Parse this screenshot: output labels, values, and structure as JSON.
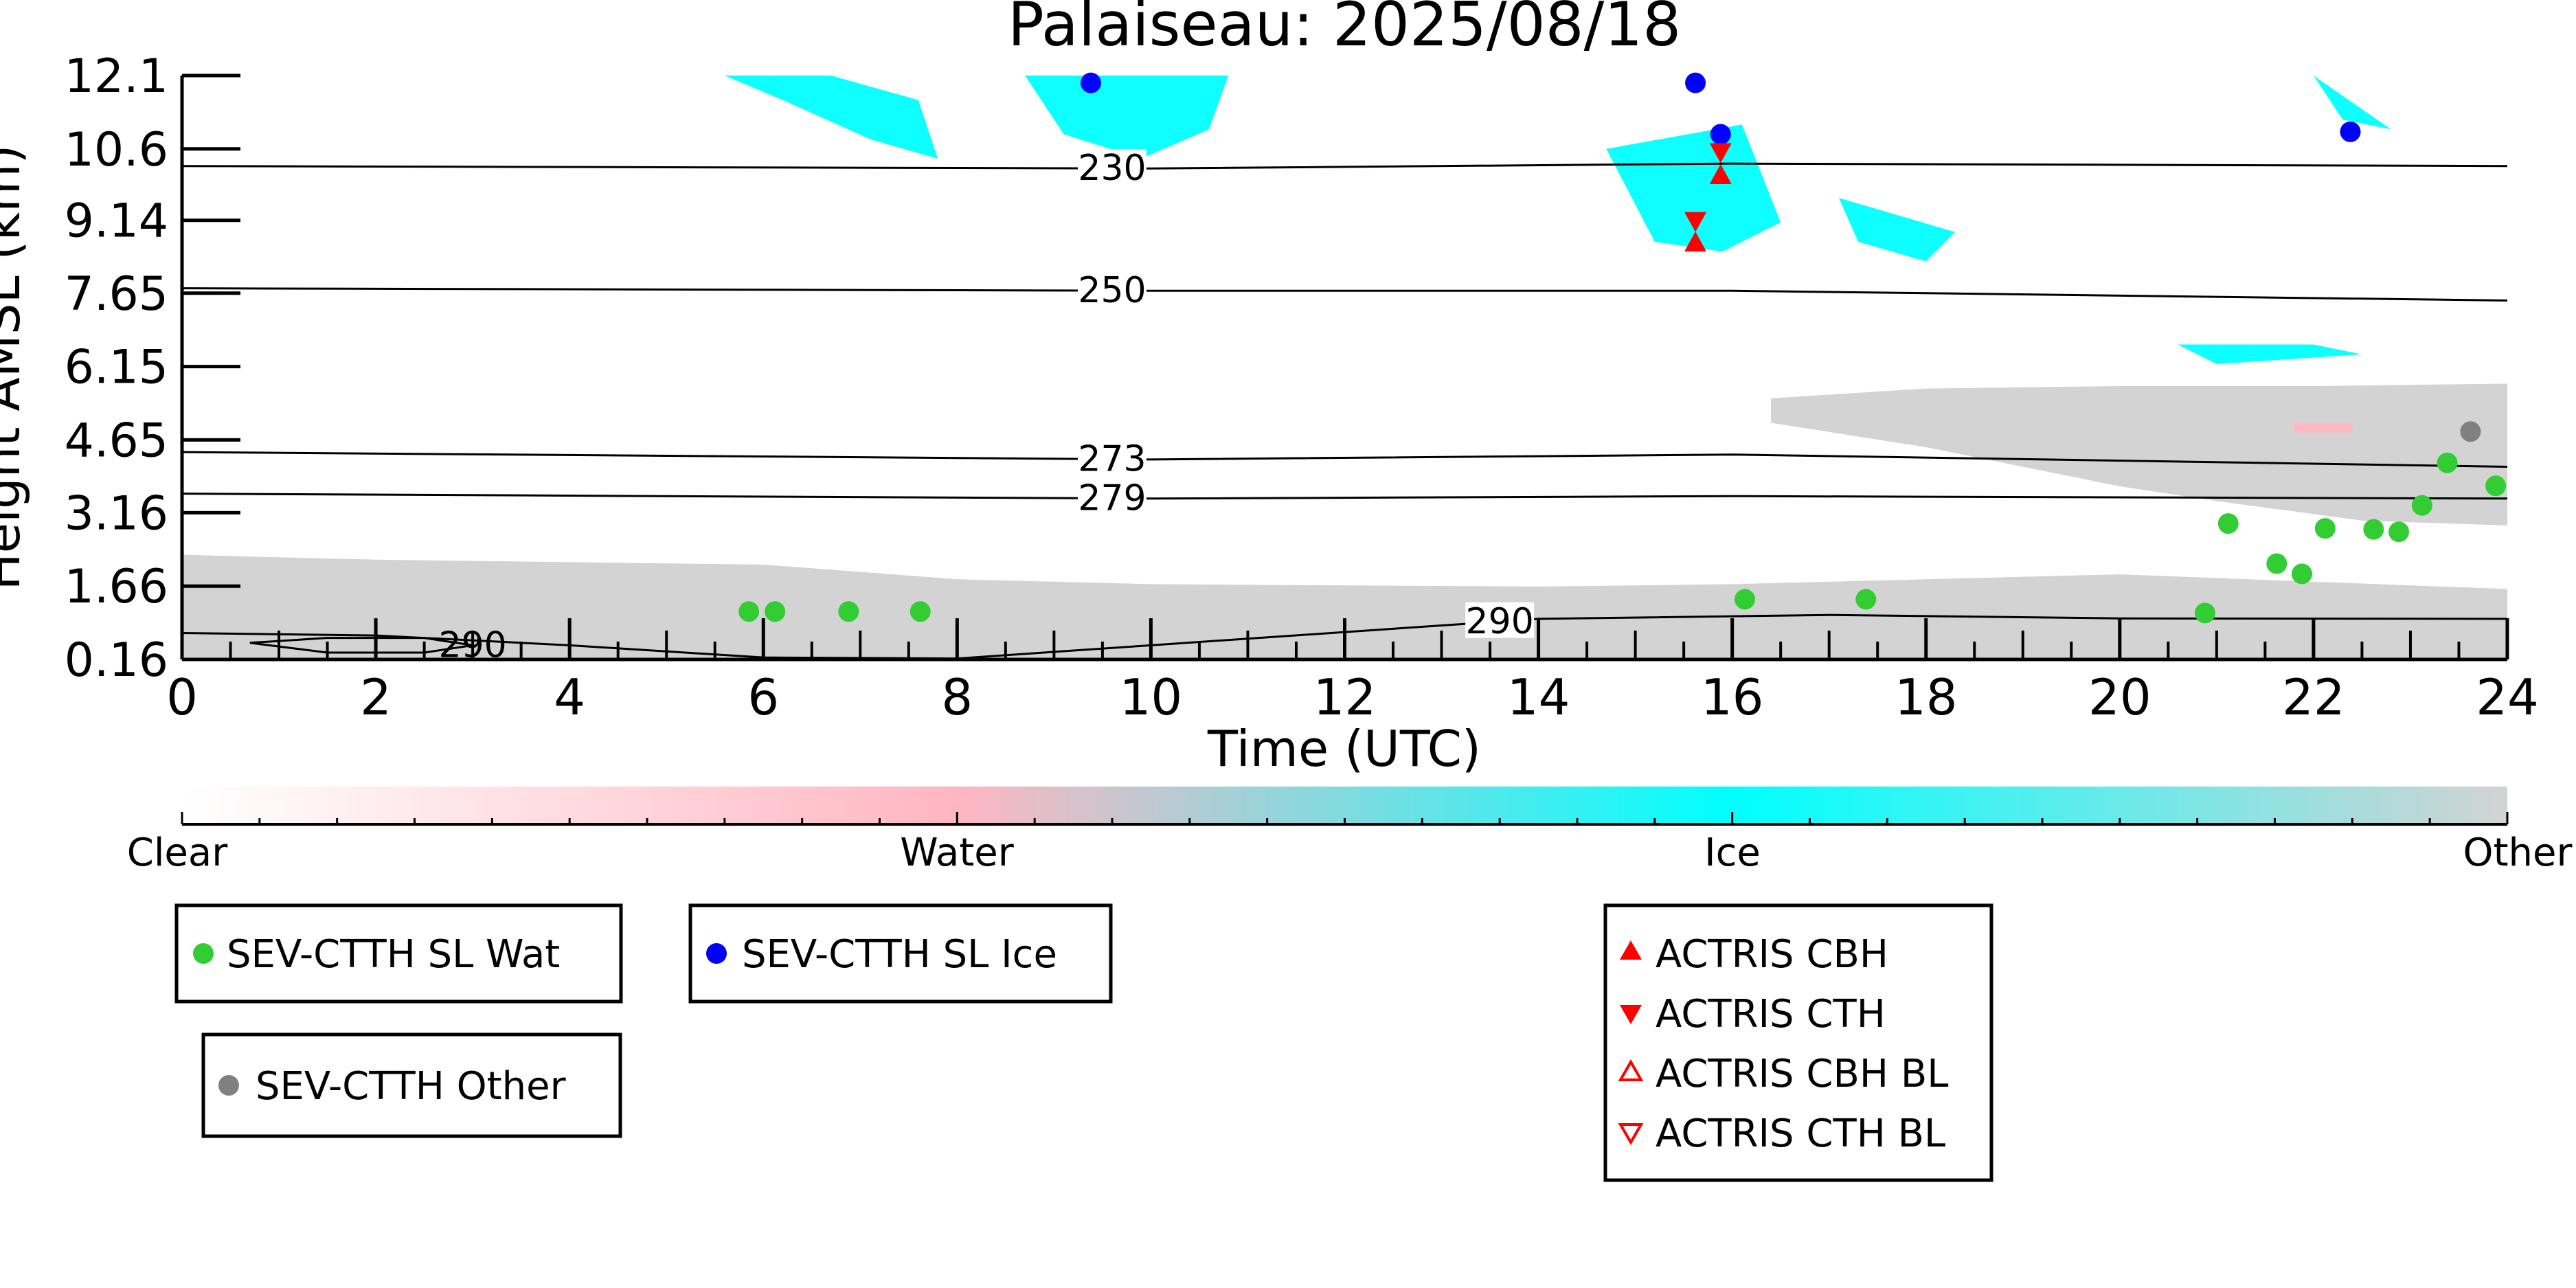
{
  "chart_data": {
    "type": "scatter",
    "title": "Palaiseau: 2025/08/18",
    "xlabel": "Time (UTC)",
    "ylabel": "Height AMSL (km)",
    "xlim": [
      0,
      24
    ],
    "xticks": [
      "0",
      "2",
      "4",
      "6",
      "8",
      "10",
      "12",
      "14",
      "16",
      "18",
      "20",
      "22",
      "24"
    ],
    "ylim": [
      0.16,
      12.1
    ],
    "yticks": [
      "0.16",
      "1.66",
      "3.16",
      "4.65",
      "6.15",
      "7.65",
      "9.14",
      "10.6",
      "12.1"
    ],
    "colorbar": {
      "labels": [
        "Clear",
        "Water",
        "Ice",
        "Other"
      ],
      "colors": [
        "#ffffff",
        "#ffb6c1",
        "#00ffff",
        "#d3d3d3"
      ]
    },
    "isotherms": [
      {
        "label": "230",
        "x": [
          0,
          10,
          16,
          24
        ],
        "y": [
          10.25,
          10.2,
          10.3,
          10.25
        ],
        "label_x": 9.6
      },
      {
        "label": "250",
        "x": [
          0,
          10,
          16,
          24
        ],
        "y": [
          7.75,
          7.7,
          7.7,
          7.5
        ],
        "label_x": 9.6
      },
      {
        "label": "273",
        "x": [
          0,
          10,
          16,
          24
        ],
        "y": [
          4.4,
          4.25,
          4.35,
          4.1
        ],
        "label_x": 9.6
      },
      {
        "label": "279",
        "x": [
          0,
          10,
          16,
          24
        ],
        "y": [
          3.55,
          3.45,
          3.5,
          3.45
        ],
        "label_x": 9.6
      },
      {
        "label": "290",
        "x": [
          0,
          2,
          4,
          6,
          8,
          10,
          14,
          17,
          20,
          24
        ],
        "y": [
          0.7,
          0.65,
          0.45,
          0.2,
          0.18,
          0.45,
          0.99,
          1.07,
          1.0,
          0.99
        ],
        "label_x": 13.6
      },
      {
        "label": "290",
        "x": [
          0.7,
          1.5,
          2.5,
          3.0,
          2.5,
          1.5,
          0.7
        ],
        "y": [
          0.5,
          0.6,
          0.6,
          0.45,
          0.3,
          0.3,
          0.5
        ],
        "label_x": 3.0
      }
    ],
    "cloud_regions": [
      {
        "phase": "Other",
        "color": "#d3d3d3",
        "x": [
          0,
          2,
          6,
          8,
          10,
          14,
          16,
          20,
          24,
          24,
          0
        ],
        "y": [
          2.3,
          2.2,
          2.1,
          1.8,
          1.7,
          1.65,
          1.7,
          1.9,
          1.6,
          0.16,
          0.16
        ]
      },
      {
        "phase": "Other",
        "color": "#d3d3d3",
        "x": [
          16.4,
          18,
          20,
          22,
          24,
          24,
          22.5,
          21,
          20,
          19,
          18,
          16.4
        ],
        "y": [
          5.5,
          5.7,
          5.75,
          5.75,
          5.8,
          2.9,
          3.0,
          3.4,
          3.7,
          4.1,
          4.5,
          5.0
        ]
      },
      {
        "phase": "Ice",
        "color": "#00ffff",
        "x": [
          5.6,
          6.7,
          7.6,
          7.8,
          7.1,
          6.2,
          5.6
        ],
        "y": [
          12.1,
          12.1,
          11.6,
          10.4,
          10.8,
          11.6,
          12.1
        ]
      },
      {
        "phase": "Ice",
        "color": "#00ffff",
        "x": [
          8.7,
          10.8,
          10.6,
          9.9,
          9.1,
          8.7
        ],
        "y": [
          12.1,
          12.1,
          11.0,
          10.4,
          10.9,
          12.1
        ]
      },
      {
        "phase": "Ice",
        "color": "#00ffff",
        "x": [
          14.7,
          16.1,
          16.5,
          15.9,
          15.2,
          14.7
        ],
        "y": [
          10.6,
          11.1,
          9.1,
          8.5,
          8.7,
          10.6
        ]
      },
      {
        "phase": "Ice",
        "color": "#00ffff",
        "x": [
          17.1,
          18.3,
          18.0,
          17.3,
          17.1
        ],
        "y": [
          9.6,
          8.9,
          8.3,
          8.7,
          9.6
        ]
      },
      {
        "phase": "Ice",
        "color": "#00ffff",
        "x": [
          20.6,
          22.0,
          22.5,
          21.0,
          20.6
        ],
        "y": [
          6.6,
          6.6,
          6.4,
          6.2,
          6.6
        ]
      },
      {
        "phase": "Ice",
        "color": "#00ffff",
        "x": [
          22.0,
          22.8,
          22.3,
          22.0
        ],
        "y": [
          12.1,
          11.0,
          11.2,
          12.1
        ]
      },
      {
        "phase": "Water",
        "color": "#ffb6c1",
        "x": [
          21.8,
          22.4,
          22.4,
          21.8
        ],
        "y": [
          5.0,
          5.0,
          4.8,
          4.8
        ]
      }
    ],
    "series": [
      {
        "name": "SEV-CTTH SL Wat",
        "marker": "circle",
        "color": "#32cd32",
        "x": [
          5.85,
          6.12,
          6.88,
          7.62,
          16.13,
          17.38,
          20.88,
          21.12,
          21.62,
          21.88,
          22.12,
          22.62,
          22.88,
          23.12,
          23.38,
          23.88
        ],
        "y": [
          1.14,
          1.14,
          1.14,
          1.14,
          1.39,
          1.39,
          1.11,
          2.94,
          2.12,
          1.91,
          2.84,
          2.82,
          2.77,
          3.31,
          4.18,
          3.71
        ]
      },
      {
        "name": "SEV-CTTH SL Ice",
        "marker": "circle",
        "color": "#0000ff",
        "x": [
          9.38,
          15.62,
          15.88,
          22.38
        ],
        "y": [
          11.95,
          11.95,
          10.9,
          10.95
        ]
      },
      {
        "name": "SEV-CTTH Other",
        "marker": "circle",
        "color": "#808080",
        "x": [
          23.62
        ],
        "y": [
          4.82
        ]
      },
      {
        "name": "ACTRIS CBH",
        "marker": "triangle-up",
        "color": "#ff0000",
        "x": [
          15.88,
          15.62
        ],
        "y": [
          10.05,
          8.67
        ]
      },
      {
        "name": "ACTRIS CTH",
        "marker": "triangle-down",
        "color": "#ff0000",
        "x": [
          15.88,
          15.62
        ],
        "y": [
          10.55,
          9.14
        ]
      },
      {
        "name": "ACTRIS CBH BL",
        "marker": "triangle-up-open",
        "color": "#ff0000",
        "x": [],
        "y": []
      },
      {
        "name": "ACTRIS CTH BL",
        "marker": "triangle-down-open",
        "color": "#ff0000",
        "x": [],
        "y": []
      }
    ],
    "legends": [
      {
        "entries": [
          "SEV-CTTH SL Wat"
        ]
      },
      {
        "entries": [
          "SEV-CTTH SL Ice"
        ]
      },
      {
        "entries": [
          "SEV-CTTH Other"
        ]
      },
      {
        "entries": [
          "ACTRIS CBH",
          "ACTRIS CTH",
          "ACTRIS CBH BL",
          "ACTRIS CTH BL"
        ]
      }
    ]
  }
}
